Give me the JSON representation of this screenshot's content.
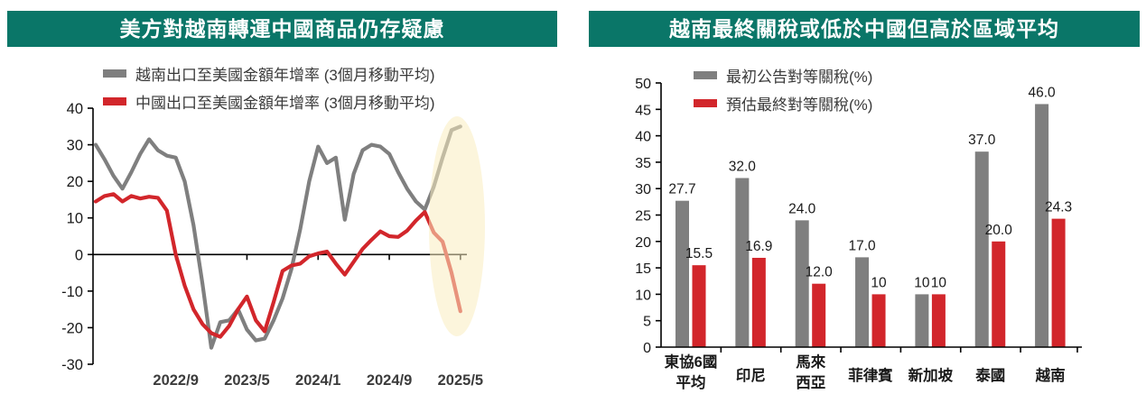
{
  "colors": {
    "header_bg": "#0a7668",
    "header_text": "#ffffff",
    "series_gray": "#7f7f7f",
    "series_red": "#d2262b",
    "axis": "#000000",
    "tick_label": "#1a1a1a",
    "date_label": "#3c3c3c",
    "highlight": "#f9ecc0"
  },
  "chart_data": [
    {
      "type": "line",
      "title": "美方對越南轉運中國商品仍存疑慮",
      "xlabel": "",
      "ylabel": "",
      "ylim": [
        -30,
        40
      ],
      "y_ticks": [
        40,
        30,
        20,
        10,
        0,
        -10,
        -20,
        -30
      ],
      "x_start": "2021/12",
      "x_frequency": "monthly",
      "x_tick_labels": [
        "2022/9",
        "2023/5",
        "2024/1",
        "2024/9",
        "2025/5"
      ],
      "grid": false,
      "legend_position": "top",
      "series": [
        {
          "name": "越南出口至美國金額年增率 (3個月移動平均)",
          "color": "#7f7f7f",
          "values": [
            30,
            26,
            21.5,
            18,
            22.5,
            27.5,
            31.5,
            28.5,
            27,
            26.5,
            20,
            8,
            -8,
            -25.5,
            -18.5,
            -18,
            -15,
            -20.5,
            -23.5,
            -23,
            -18,
            -12,
            -4,
            7,
            20,
            29.5,
            25,
            26.5,
            9.5,
            22,
            28.5,
            30,
            29.5,
            27.5,
            22.5,
            18,
            14.5,
            12.3,
            18.5,
            26.5,
            34,
            35
          ]
        },
        {
          "name": "中國出口至美國金額年增率 (3個月移動平均)",
          "color": "#d2262b",
          "values": [
            14.5,
            16,
            16.5,
            14.5,
            16,
            15.3,
            15.8,
            15.5,
            12,
            0,
            -8.5,
            -15,
            -19,
            -21.5,
            -22.5,
            -19.5,
            -15,
            -11.5,
            -18,
            -21,
            -13,
            -4.5,
            -3,
            -2.5,
            -0.5,
            0.3,
            0.8,
            -2.5,
            -5.5,
            -2,
            1.5,
            4,
            6.3,
            5,
            4.8,
            6.5,
            9.3,
            11.6,
            6,
            3.5,
            -5,
            -15.5
          ]
        }
      ],
      "annotations": {
        "highlight_ellipse": {
          "note": "emphasis on 2025 divergence",
          "color": "#f9ecc0"
        }
      }
    },
    {
      "type": "bar",
      "title": "越南最終關稅或低於中國但高於區域平均",
      "xlabel": "",
      "ylabel": "",
      "ylim": [
        0,
        50
      ],
      "y_ticks": [
        0,
        5,
        10,
        15,
        20,
        25,
        30,
        35,
        40,
        45,
        50
      ],
      "grid": false,
      "legend_position": "top",
      "categories": [
        "東協6國\n平均",
        "印尼",
        "馬來\n西亞",
        "菲律賓",
        "新加坡",
        "泰國",
        "越南"
      ],
      "series": [
        {
          "name": "最初公告對等關稅(%)",
          "color": "#7f7f7f",
          "values": [
            27.7,
            32.0,
            24.0,
            17.0,
            10,
            37.0,
            46.0
          ],
          "labels": [
            "27.7",
            "32.0",
            "24.0",
            "17.0",
            "10",
            "37.0",
            "46.0"
          ]
        },
        {
          "name": "預估最終對等關稅(%)",
          "color": "#d2262b",
          "values": [
            15.5,
            16.9,
            12.0,
            10,
            10,
            20.0,
            24.3
          ],
          "labels": [
            "15.5",
            "16.9",
            "12.0",
            "10",
            "10",
            "20.0",
            "24.3"
          ]
        }
      ]
    }
  ]
}
